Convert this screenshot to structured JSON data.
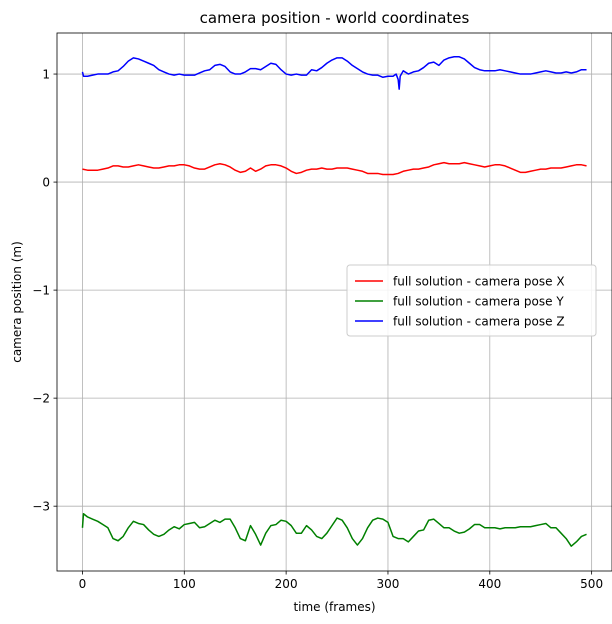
{
  "chart_data": {
    "type": "line",
    "title": "camera position - world coordinates",
    "xlabel": "time (frames)",
    "ylabel": "camera position (m)",
    "xlim": [
      -25,
      520
    ],
    "ylim": [
      -3.6,
      1.38
    ],
    "xticks": [
      0,
      100,
      200,
      300,
      400,
      500
    ],
    "yticks": [
      1,
      0,
      -1,
      -2,
      -3
    ],
    "xtick_labels": [
      "0",
      "100",
      "200",
      "300",
      "400",
      "500"
    ],
    "ytick_labels": [
      "1",
      "0",
      "−1",
      "−2",
      "−3"
    ],
    "grid": true,
    "legend_position": "center-right",
    "series": [
      {
        "name": "full solution - camera pose X",
        "color": "#ff0000",
        "x": [
          0,
          5,
          10,
          15,
          20,
          25,
          30,
          35,
          40,
          45,
          50,
          55,
          60,
          65,
          70,
          75,
          80,
          85,
          90,
          95,
          100,
          105,
          110,
          115,
          120,
          125,
          130,
          135,
          140,
          145,
          150,
          155,
          160,
          165,
          170,
          175,
          180,
          185,
          190,
          195,
          200,
          205,
          210,
          215,
          220,
          225,
          230,
          235,
          240,
          245,
          250,
          255,
          260,
          265,
          270,
          275,
          280,
          285,
          290,
          295,
          300,
          305,
          310,
          315,
          320,
          325,
          330,
          335,
          340,
          345,
          350,
          355,
          360,
          365,
          370,
          375,
          380,
          385,
          390,
          395,
          400,
          405,
          410,
          415,
          420,
          425,
          430,
          435,
          440,
          445,
          450,
          455,
          460,
          465,
          470,
          475,
          480,
          485,
          490,
          495
        ],
        "y": [
          0.12,
          0.11,
          0.11,
          0.11,
          0.12,
          0.13,
          0.15,
          0.15,
          0.14,
          0.14,
          0.15,
          0.16,
          0.15,
          0.14,
          0.13,
          0.13,
          0.14,
          0.15,
          0.15,
          0.16,
          0.16,
          0.15,
          0.13,
          0.12,
          0.12,
          0.14,
          0.16,
          0.17,
          0.16,
          0.14,
          0.11,
          0.09,
          0.1,
          0.13,
          0.1,
          0.12,
          0.15,
          0.16,
          0.16,
          0.15,
          0.13,
          0.1,
          0.08,
          0.09,
          0.11,
          0.12,
          0.12,
          0.13,
          0.12,
          0.12,
          0.13,
          0.13,
          0.13,
          0.12,
          0.11,
          0.1,
          0.08,
          0.08,
          0.08,
          0.07,
          0.07,
          0.07,
          0.08,
          0.1,
          0.11,
          0.12,
          0.12,
          0.13,
          0.14,
          0.16,
          0.17,
          0.18,
          0.17,
          0.17,
          0.17,
          0.18,
          0.17,
          0.16,
          0.15,
          0.14,
          0.15,
          0.16,
          0.16,
          0.15,
          0.13,
          0.11,
          0.09,
          0.09,
          0.1,
          0.11,
          0.12,
          0.12,
          0.13,
          0.13,
          0.13,
          0.14,
          0.15,
          0.16,
          0.16,
          0.15
        ]
      },
      {
        "name": "full solution - camera pose Y",
        "color": "#008000",
        "x": [
          0,
          1,
          5,
          10,
          15,
          20,
          25,
          30,
          35,
          40,
          45,
          50,
          55,
          60,
          65,
          70,
          75,
          80,
          85,
          90,
          95,
          100,
          105,
          110,
          115,
          120,
          125,
          130,
          135,
          140,
          145,
          150,
          155,
          160,
          165,
          170,
          175,
          180,
          185,
          190,
          195,
          200,
          205,
          210,
          215,
          220,
          225,
          230,
          235,
          240,
          245,
          250,
          255,
          260,
          265,
          270,
          275,
          280,
          285,
          290,
          295,
          300,
          305,
          310,
          315,
          320,
          325,
          330,
          335,
          340,
          345,
          350,
          355,
          360,
          365,
          370,
          375,
          380,
          385,
          390,
          395,
          400,
          405,
          410,
          415,
          420,
          425,
          430,
          435,
          440,
          445,
          450,
          455,
          460,
          465,
          470,
          475,
          480,
          485,
          490,
          495
        ],
        "y": [
          -3.2,
          -3.07,
          -3.1,
          -3.12,
          -3.14,
          -3.17,
          -3.2,
          -3.3,
          -3.32,
          -3.28,
          -3.2,
          -3.14,
          -3.16,
          -3.17,
          -3.22,
          -3.26,
          -3.28,
          -3.26,
          -3.22,
          -3.19,
          -3.21,
          -3.17,
          -3.16,
          -3.15,
          -3.2,
          -3.19,
          -3.16,
          -3.13,
          -3.15,
          -3.12,
          -3.12,
          -3.2,
          -3.3,
          -3.32,
          -3.18,
          -3.26,
          -3.36,
          -3.25,
          -3.18,
          -3.17,
          -3.13,
          -3.14,
          -3.18,
          -3.25,
          -3.25,
          -3.18,
          -3.22,
          -3.28,
          -3.3,
          -3.25,
          -3.18,
          -3.11,
          -3.13,
          -3.2,
          -3.3,
          -3.36,
          -3.3,
          -3.2,
          -3.13,
          -3.11,
          -3.12,
          -3.15,
          -3.28,
          -3.3,
          -3.3,
          -3.33,
          -3.28,
          -3.23,
          -3.22,
          -3.13,
          -3.12,
          -3.16,
          -3.2,
          -3.2,
          -3.23,
          -3.25,
          -3.24,
          -3.21,
          -3.17,
          -3.17,
          -3.2,
          -3.2,
          -3.2,
          -3.21,
          -3.2,
          -3.2,
          -3.2,
          -3.19,
          -3.19,
          -3.19,
          -3.18,
          -3.17,
          -3.16,
          -3.2,
          -3.2,
          -3.25,
          -3.3,
          -3.37,
          -3.33,
          -3.28,
          -3.26
        ]
      },
      {
        "name": "full solution - camera pose Z",
        "color": "#0000ff",
        "x": [
          0,
          1,
          5,
          10,
          15,
          20,
          25,
          30,
          35,
          40,
          45,
          50,
          55,
          60,
          65,
          70,
          75,
          80,
          85,
          90,
          95,
          100,
          105,
          110,
          115,
          120,
          125,
          130,
          135,
          140,
          145,
          150,
          155,
          160,
          165,
          170,
          175,
          180,
          185,
          190,
          195,
          200,
          205,
          210,
          215,
          220,
          225,
          230,
          235,
          240,
          245,
          250,
          255,
          260,
          265,
          270,
          275,
          280,
          285,
          290,
          295,
          300,
          305,
          308,
          310,
          311,
          312,
          315,
          320,
          325,
          330,
          335,
          340,
          345,
          350,
          355,
          360,
          365,
          370,
          375,
          380,
          385,
          390,
          395,
          400,
          405,
          410,
          415,
          420,
          425,
          430,
          435,
          440,
          445,
          450,
          455,
          460,
          465,
          470,
          475,
          480,
          485,
          490,
          495
        ],
        "y": [
          1.02,
          0.98,
          0.98,
          0.99,
          1.0,
          1.0,
          1.0,
          1.02,
          1.03,
          1.07,
          1.12,
          1.15,
          1.14,
          1.12,
          1.1,
          1.08,
          1.04,
          1.02,
          1.0,
          0.99,
          1.0,
          0.99,
          0.99,
          0.99,
          1.01,
          1.03,
          1.04,
          1.08,
          1.09,
          1.07,
          1.02,
          1.0,
          1.0,
          1.02,
          1.05,
          1.05,
          1.04,
          1.07,
          1.1,
          1.09,
          1.04,
          1.0,
          0.99,
          1.0,
          0.99,
          0.99,
          1.04,
          1.03,
          1.06,
          1.1,
          1.13,
          1.15,
          1.15,
          1.12,
          1.08,
          1.05,
          1.02,
          1.0,
          0.99,
          0.99,
          0.97,
          0.98,
          0.98,
          1.0,
          0.95,
          0.86,
          0.98,
          1.03,
          1.0,
          1.02,
          1.03,
          1.06,
          1.1,
          1.11,
          1.08,
          1.13,
          1.15,
          1.16,
          1.16,
          1.14,
          1.1,
          1.06,
          1.04,
          1.03,
          1.03,
          1.03,
          1.04,
          1.03,
          1.02,
          1.01,
          1.0,
          1.0,
          1.0,
          1.01,
          1.02,
          1.03,
          1.02,
          1.01,
          1.01,
          1.02,
          1.01,
          1.02,
          1.04,
          1.04
        ]
      }
    ]
  }
}
